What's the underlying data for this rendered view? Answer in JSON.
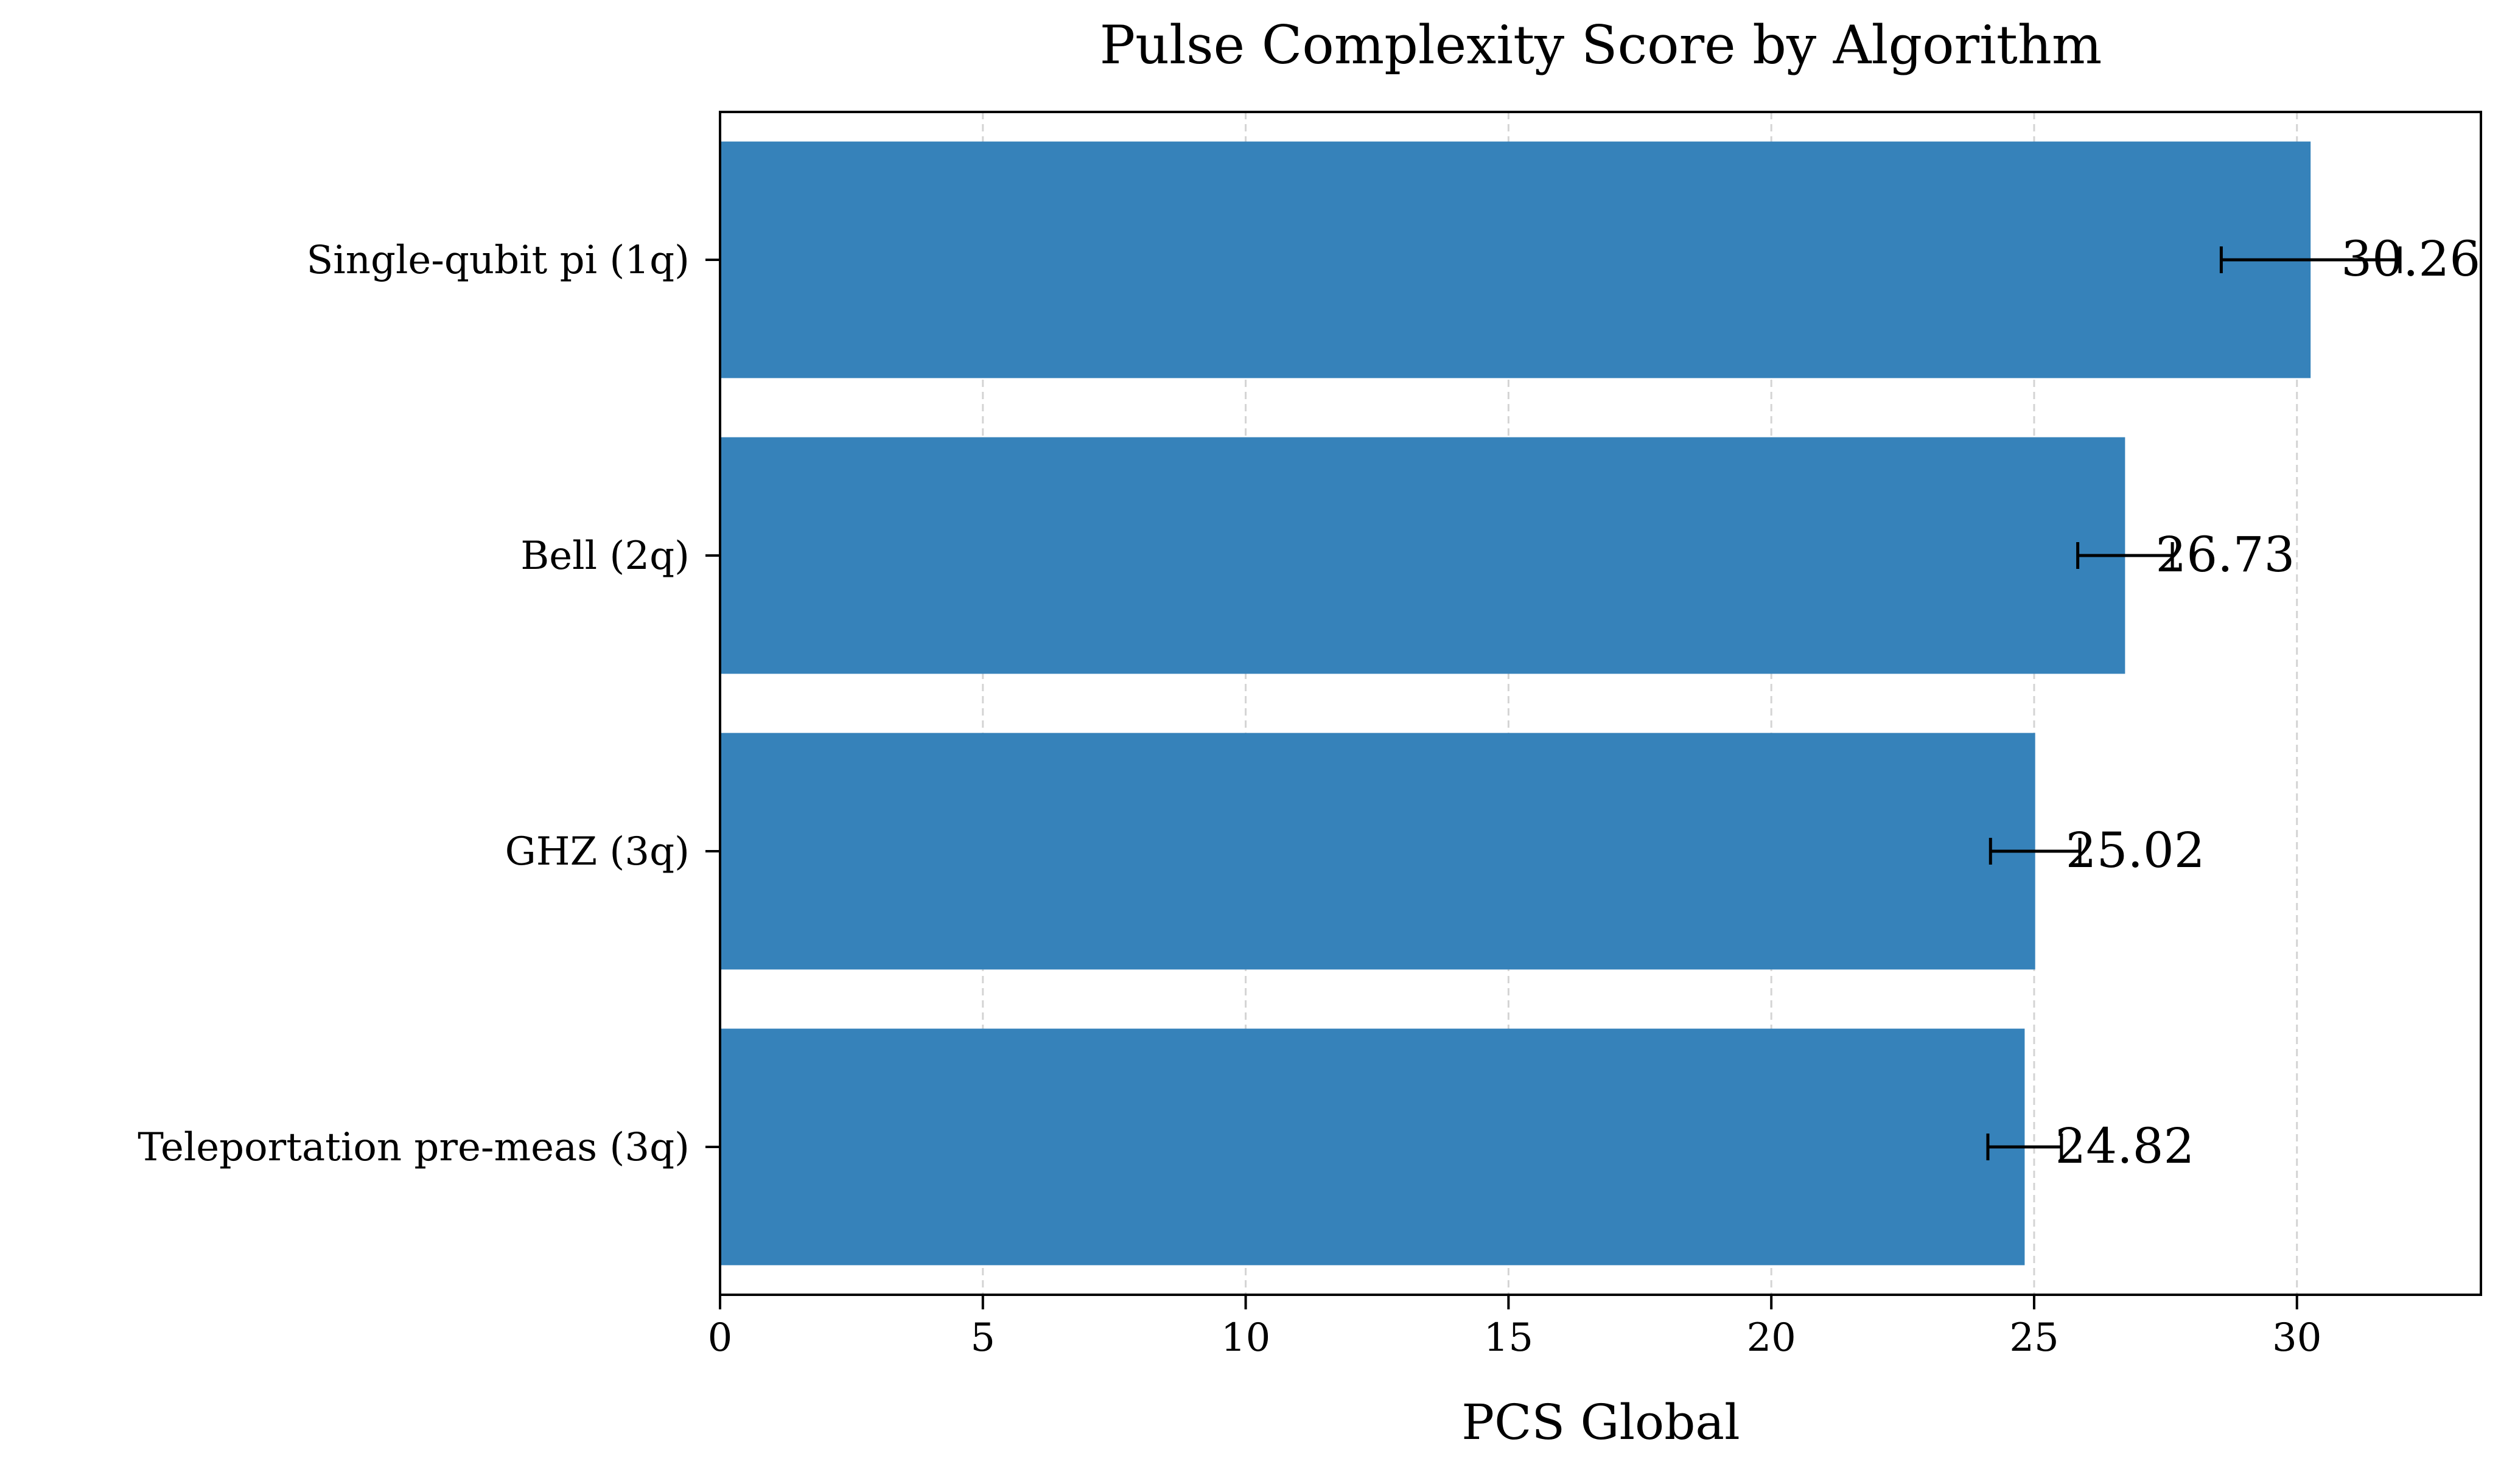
{
  "chart_data": {
    "type": "bar",
    "orientation": "horizontal",
    "title": "Pulse Complexity Score by Algorithm",
    "xlabel": "PCS Global",
    "ylabel": "",
    "categories": [
      "Single-qubit pi (1q)",
      "Bell (2q)",
      "GHZ (3q)",
      "Teleportation pre-meas (3q)"
    ],
    "values": [
      30.26,
      26.73,
      25.02,
      24.82
    ],
    "value_labels": [
      "30.26",
      "26.73",
      "25.02",
      "24.82"
    ],
    "errors": [
      1.7,
      0.9,
      0.85,
      0.7
    ],
    "xlim": [
      0,
      33.5
    ],
    "xticks": [
      0,
      5,
      10,
      15,
      20,
      25,
      30
    ],
    "xtick_labels": [
      "0",
      "5",
      "10",
      "15",
      "20",
      "25",
      "30"
    ],
    "grid": "x, dashed",
    "bar_color": "#3682ba",
    "errorbar_color": "#000000"
  }
}
